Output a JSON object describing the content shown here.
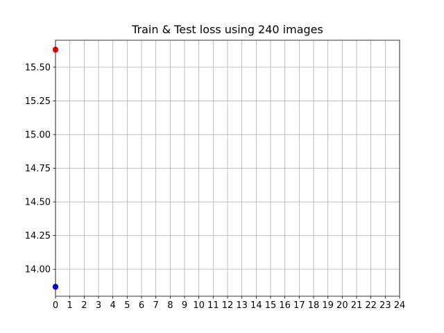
{
  "chart_data": {
    "type": "scatter",
    "title": "Train & Test loss using 240 images",
    "xlabel": "",
    "ylabel": "",
    "xlim": [
      0,
      24
    ],
    "ylim": [
      13.8,
      15.7
    ],
    "x_ticks": [
      0,
      1,
      2,
      3,
      4,
      5,
      6,
      7,
      8,
      9,
      10,
      11,
      12,
      13,
      14,
      15,
      16,
      17,
      18,
      19,
      20,
      21,
      22,
      23,
      24
    ],
    "x_tick_labels": [
      "0",
      "1",
      "2",
      "3",
      "4",
      "5",
      "6",
      "7",
      "8",
      "9",
      "10",
      "11",
      "12",
      "13",
      "14",
      "15",
      "16",
      "17",
      "18",
      "19",
      "20",
      "21",
      "22",
      "23",
      "24"
    ],
    "y_ticks": [
      14.0,
      14.25,
      14.5,
      14.75,
      15.0,
      15.25,
      15.5
    ],
    "y_tick_labels": [
      "14.00",
      "14.25",
      "14.50",
      "14.75",
      "15.00",
      "15.25",
      "15.50"
    ],
    "grid": true,
    "legend": "none",
    "series": [
      {
        "color": "#ff0000",
        "x": [
          0
        ],
        "y": [
          15.63
        ]
      },
      {
        "color": "#0000ff",
        "x": [
          0
        ],
        "y": [
          13.87
        ]
      }
    ]
  }
}
